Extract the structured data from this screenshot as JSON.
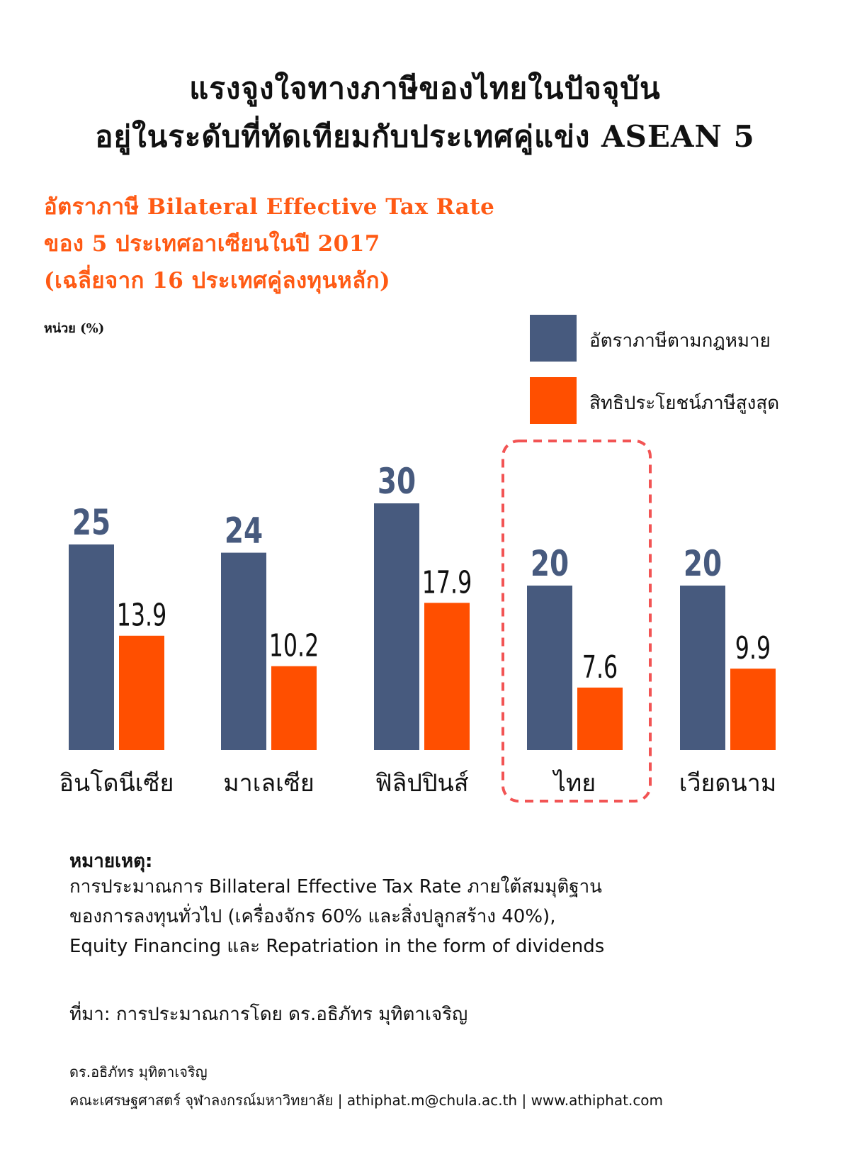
{
  "header": {
    "title_line1": "แรงจูงใจทางภาษีของไทยในปัจจุบัน",
    "title_line2": "อยู่ในระดับที่ทัดเทียมกับประเทศคู่แข่ง ASEAN 5",
    "subtitle_line1": "อัตราภาษี Bilateral Effective Tax Rate",
    "subtitle_line2": "ของ 5 ประเทศอาเซียนในปี 2017",
    "subtitle_line3": "(เฉลี่ยจาก 16 ประเทศคู่ลงทุนหลัก)"
  },
  "chart_data": {
    "type": "bar",
    "title": "อัตราภาษี Bilateral Effective Tax Rate ของ 5 ประเทศอาเซียนในปี 2017 (เฉลี่ยจาก 16 ประเทศคู่ลงทุนหลัก)",
    "ylabel": "หน่วย (%)",
    "xlabel": "",
    "categories": [
      "อินโดนีเซีย",
      "มาเลเซีย",
      "ฟิลิปปินส์",
      "ไทย",
      "เวียดนาม"
    ],
    "series": [
      {
        "name": "อัตราภาษีตามกฎหมาย",
        "color": "#475a7e",
        "values": [
          25,
          24,
          30,
          20,
          20
        ],
        "labels": [
          "25",
          "24",
          "30",
          "20",
          "20"
        ]
      },
      {
        "name": "สิทธิประโยชน์ภาษีสูงสุด",
        "color": "#ff4f00",
        "values": [
          13.9,
          10.2,
          17.9,
          7.6,
          9.9
        ],
        "labels": [
          "13.9",
          "10.2",
          "17.9",
          "7.6",
          "9.9"
        ]
      }
    ],
    "ylim": [
      0,
      30
    ],
    "grid": false,
    "legend_position": "top-right",
    "highlight_category": "ไทย",
    "highlight_color": "#f25454"
  },
  "notes": {
    "heading": "หมายเหตุ:",
    "lines": [
      "การประมาณการ Billateral Effective Tax Rate ภายใต้สมมุติฐาน",
      "ของการลงทุนทั่วไป (เครื่องจักร 60% และสิ่งปลูกสร้าง 40%),",
      "Equity Financing และ Repatriation in the form of dividends"
    ],
    "source": "ที่มา: การประมาณการโดย ดร.อธิภัทร มุทิตาเจริญ"
  },
  "footer": {
    "author": "ดร.อธิภัทร มุทิตาเจริญ",
    "affiliation": "คณะเศรษฐศาสตร์ จุฬาลงกรณ์มหาวิทยาลัย | athiphat.m@chula.ac.th | www.athiphat.com"
  }
}
